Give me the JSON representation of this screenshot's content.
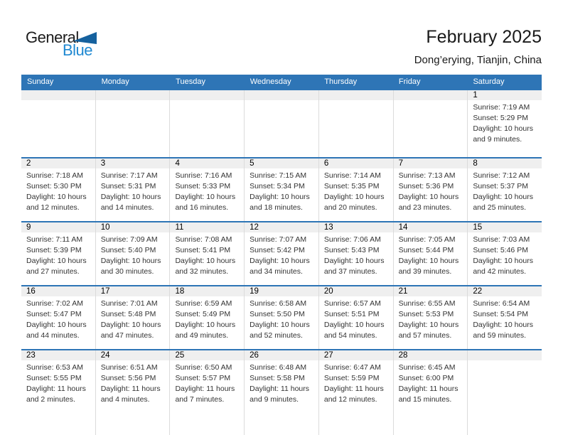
{
  "logo": {
    "general": "General",
    "blue": "Blue"
  },
  "header": {
    "title": "February 2025",
    "subtitle": "Dong’erying, Tianjin, China"
  },
  "colors": {
    "accent_blue": "#2e75b6",
    "band_gray": "#efefef",
    "logo_text_blue": "#1f88d1",
    "logo_triangle_blue": "#15619e",
    "cell_divider": "#dbdbdb"
  },
  "weekdays": [
    "Sunday",
    "Monday",
    "Tuesday",
    "Wednesday",
    "Thursday",
    "Friday",
    "Saturday"
  ],
  "weeks": [
    [
      null,
      null,
      null,
      null,
      null,
      null,
      {
        "day": "1",
        "sunrise": "Sunrise: 7:19 AM",
        "sunset": "Sunset: 5:29 PM",
        "daylight": "Daylight: 10 hours and 9 minutes."
      }
    ],
    [
      {
        "day": "2",
        "sunrise": "Sunrise: 7:18 AM",
        "sunset": "Sunset: 5:30 PM",
        "daylight": "Daylight: 10 hours and 12 minutes."
      },
      {
        "day": "3",
        "sunrise": "Sunrise: 7:17 AM",
        "sunset": "Sunset: 5:31 PM",
        "daylight": "Daylight: 10 hours and 14 minutes."
      },
      {
        "day": "4",
        "sunrise": "Sunrise: 7:16 AM",
        "sunset": "Sunset: 5:33 PM",
        "daylight": "Daylight: 10 hours and 16 minutes."
      },
      {
        "day": "5",
        "sunrise": "Sunrise: 7:15 AM",
        "sunset": "Sunset: 5:34 PM",
        "daylight": "Daylight: 10 hours and 18 minutes."
      },
      {
        "day": "6",
        "sunrise": "Sunrise: 7:14 AM",
        "sunset": "Sunset: 5:35 PM",
        "daylight": "Daylight: 10 hours and 20 minutes."
      },
      {
        "day": "7",
        "sunrise": "Sunrise: 7:13 AM",
        "sunset": "Sunset: 5:36 PM",
        "daylight": "Daylight: 10 hours and 23 minutes."
      },
      {
        "day": "8",
        "sunrise": "Sunrise: 7:12 AM",
        "sunset": "Sunset: 5:37 PM",
        "daylight": "Daylight: 10 hours and 25 minutes."
      }
    ],
    [
      {
        "day": "9",
        "sunrise": "Sunrise: 7:11 AM",
        "sunset": "Sunset: 5:39 PM",
        "daylight": "Daylight: 10 hours and 27 minutes."
      },
      {
        "day": "10",
        "sunrise": "Sunrise: 7:09 AM",
        "sunset": "Sunset: 5:40 PM",
        "daylight": "Daylight: 10 hours and 30 minutes."
      },
      {
        "day": "11",
        "sunrise": "Sunrise: 7:08 AM",
        "sunset": "Sunset: 5:41 PM",
        "daylight": "Daylight: 10 hours and 32 minutes."
      },
      {
        "day": "12",
        "sunrise": "Sunrise: 7:07 AM",
        "sunset": "Sunset: 5:42 PM",
        "daylight": "Daylight: 10 hours and 34 minutes."
      },
      {
        "day": "13",
        "sunrise": "Sunrise: 7:06 AM",
        "sunset": "Sunset: 5:43 PM",
        "daylight": "Daylight: 10 hours and 37 minutes."
      },
      {
        "day": "14",
        "sunrise": "Sunrise: 7:05 AM",
        "sunset": "Sunset: 5:44 PM",
        "daylight": "Daylight: 10 hours and 39 minutes."
      },
      {
        "day": "15",
        "sunrise": "Sunrise: 7:03 AM",
        "sunset": "Sunset: 5:46 PM",
        "daylight": "Daylight: 10 hours and 42 minutes."
      }
    ],
    [
      {
        "day": "16",
        "sunrise": "Sunrise: 7:02 AM",
        "sunset": "Sunset: 5:47 PM",
        "daylight": "Daylight: 10 hours and 44 minutes."
      },
      {
        "day": "17",
        "sunrise": "Sunrise: 7:01 AM",
        "sunset": "Sunset: 5:48 PM",
        "daylight": "Daylight: 10 hours and 47 minutes."
      },
      {
        "day": "18",
        "sunrise": "Sunrise: 6:59 AM",
        "sunset": "Sunset: 5:49 PM",
        "daylight": "Daylight: 10 hours and 49 minutes."
      },
      {
        "day": "19",
        "sunrise": "Sunrise: 6:58 AM",
        "sunset": "Sunset: 5:50 PM",
        "daylight": "Daylight: 10 hours and 52 minutes."
      },
      {
        "day": "20",
        "sunrise": "Sunrise: 6:57 AM",
        "sunset": "Sunset: 5:51 PM",
        "daylight": "Daylight: 10 hours and 54 minutes."
      },
      {
        "day": "21",
        "sunrise": "Sunrise: 6:55 AM",
        "sunset": "Sunset: 5:53 PM",
        "daylight": "Daylight: 10 hours and 57 minutes."
      },
      {
        "day": "22",
        "sunrise": "Sunrise: 6:54 AM",
        "sunset": "Sunset: 5:54 PM",
        "daylight": "Daylight: 10 hours and 59 minutes."
      }
    ],
    [
      {
        "day": "23",
        "sunrise": "Sunrise: 6:53 AM",
        "sunset": "Sunset: 5:55 PM",
        "daylight": "Daylight: 11 hours and 2 minutes."
      },
      {
        "day": "24",
        "sunrise": "Sunrise: 6:51 AM",
        "sunset": "Sunset: 5:56 PM",
        "daylight": "Daylight: 11 hours and 4 minutes."
      },
      {
        "day": "25",
        "sunrise": "Sunrise: 6:50 AM",
        "sunset": "Sunset: 5:57 PM",
        "daylight": "Daylight: 11 hours and 7 minutes."
      },
      {
        "day": "26",
        "sunrise": "Sunrise: 6:48 AM",
        "sunset": "Sunset: 5:58 PM",
        "daylight": "Daylight: 11 hours and 9 minutes."
      },
      {
        "day": "27",
        "sunrise": "Sunrise: 6:47 AM",
        "sunset": "Sunset: 5:59 PM",
        "daylight": "Daylight: 11 hours and 12 minutes."
      },
      {
        "day": "28",
        "sunrise": "Sunrise: 6:45 AM",
        "sunset": "Sunset: 6:00 PM",
        "daylight": "Daylight: 11 hours and 15 minutes."
      },
      null
    ]
  ]
}
